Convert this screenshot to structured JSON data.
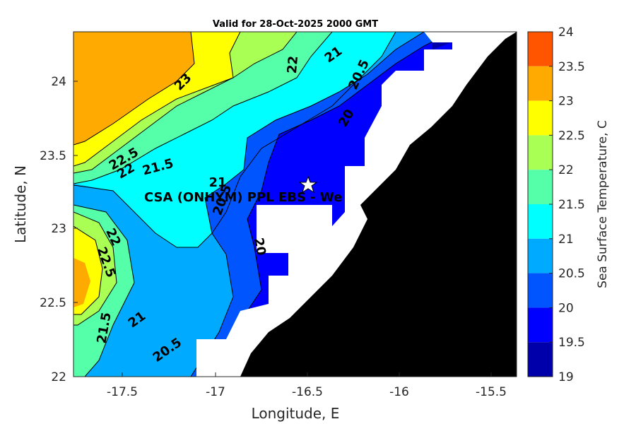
{
  "title": "Valid for 28-Oct-2025 2000 GMT",
  "xlabel": "Longitude, E",
  "ylabel": "Latitude, N",
  "x_ticks": [
    "-17.5",
    "-17",
    "-16.5",
    "-16",
    "-15.5"
  ],
  "y_ticks": [
    "24",
    "23.5",
    "23",
    "22.5",
    "22"
  ],
  "colorbar": {
    "label": "Sea Surface Temperature, C",
    "ticks": [
      "24",
      "23.5",
      "23",
      "22.5",
      "22",
      "21.5",
      "21",
      "20.5",
      "20",
      "19.5",
      "19"
    ],
    "colors": [
      "#ff5500",
      "#ffaa00",
      "#ffff00",
      "#aaff55",
      "#55ffaa",
      "#00ffff",
      "#00aaff",
      "#0055ff",
      "#0000ff",
      "#0000aa"
    ]
  },
  "station": {
    "label": "CSA (ONHYM) PPL EBS  - We",
    "marker_icon": "star-icon"
  },
  "contour_labels": [
    "23",
    "22",
    "21",
    "20.5",
    "20",
    "22.5",
    "22",
    "21.5",
    "21",
    "20.5",
    "20",
    "22",
    "22.5",
    "21.5",
    "21",
    "20.5"
  ],
  "colors": {
    "land": "#000000",
    "masked": "#ffffff"
  }
}
